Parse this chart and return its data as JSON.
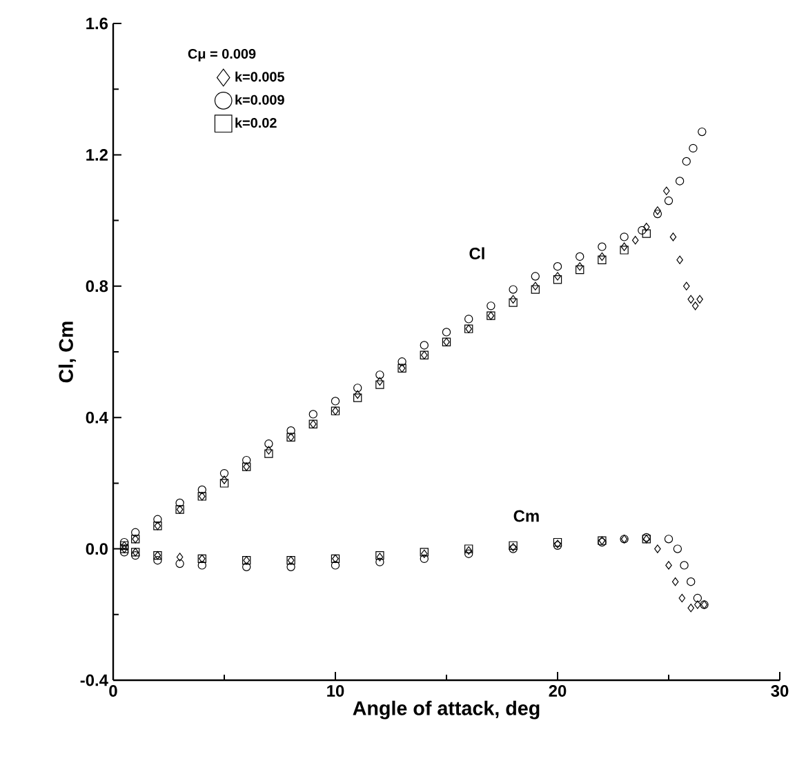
{
  "chart_data": {
    "type": "scatter",
    "xlabel": "Angle of attack, deg",
    "ylabel": "Cl, Cm",
    "legend_title": "Cμ = 0.009",
    "legend": "top left",
    "grid": false,
    "xlim": [
      0,
      30
    ],
    "xticks": [
      0,
      10,
      20,
      30
    ],
    "ylim": [
      -0.4,
      1.6
    ],
    "yticks": [
      -0.4,
      {
        "value": 0,
        "label": "0.0"
      },
      0.4,
      0.8,
      1.2,
      1.6
    ],
    "annotations": [
      "Cl",
      "Cm"
    ],
    "series": [
      {
        "name": "k=0.005",
        "color": "#000000",
        "marker": "diamond",
        "x": [
          0.5,
          1,
          2,
          3,
          4,
          5,
          6,
          7,
          8,
          9,
          10,
          11,
          12,
          13,
          14,
          15,
          16,
          17,
          18,
          19,
          20,
          21,
          22,
          23,
          23.5,
          24,
          24.5,
          24.9,
          25.2,
          25.5,
          25.8,
          26,
          26.2,
          26.4,
          0.5,
          1,
          2,
          3,
          4,
          6,
          8,
          10,
          12,
          14,
          16,
          18,
          20,
          22,
          23,
          24,
          24.5,
          25,
          25.3,
          25.6,
          26,
          26.3,
          26.6
        ],
        "values": [
          0.01,
          0.03,
          0.07,
          0.12,
          0.16,
          0.21,
          0.25,
          0.3,
          0.34,
          0.38,
          0.42,
          0.47,
          0.51,
          0.55,
          0.59,
          0.63,
          0.67,
          0.71,
          0.76,
          0.8,
          0.83,
          0.86,
          0.89,
          0.92,
          0.94,
          0.98,
          1.03,
          1.09,
          0.95,
          0.88,
          0.8,
          0.76,
          0.74,
          0.76,
          0.0,
          -0.01,
          -0.02,
          -0.025,
          -0.03,
          -0.035,
          -0.035,
          -0.03,
          -0.025,
          -0.015,
          -0.005,
          0.005,
          0.015,
          0.025,
          0.03,
          0.03,
          0.0,
          -0.05,
          -0.1,
          -0.15,
          -0.18,
          -0.17,
          -0.17
        ]
      },
      {
        "name": "k=0.009",
        "color": "#000000",
        "marker": "circle",
        "x": [
          0.5,
          1,
          2,
          3,
          4,
          5,
          6,
          7,
          8,
          9,
          10,
          11,
          12,
          13,
          14,
          15,
          16,
          17,
          18,
          19,
          20,
          21,
          22,
          23,
          23.8,
          24.5,
          25,
          25.5,
          25.8,
          26.1,
          26.5,
          0.5,
          1,
          2,
          3,
          4,
          6,
          8,
          10,
          12,
          14,
          16,
          18,
          20,
          22,
          23,
          24,
          25,
          25.4,
          25.7,
          26,
          26.3,
          26.6
        ],
        "values": [
          0.02,
          0.05,
          0.09,
          0.14,
          0.18,
          0.23,
          0.27,
          0.32,
          0.36,
          0.41,
          0.45,
          0.49,
          0.53,
          0.57,
          0.62,
          0.66,
          0.7,
          0.74,
          0.79,
          0.83,
          0.86,
          0.89,
          0.92,
          0.95,
          0.97,
          1.02,
          1.06,
          1.12,
          1.18,
          1.22,
          1.27,
          -0.01,
          -0.02,
          -0.035,
          -0.045,
          -0.05,
          -0.055,
          -0.055,
          -0.05,
          -0.04,
          -0.03,
          -0.015,
          0.0,
          0.01,
          0.02,
          0.03,
          0.035,
          0.03,
          0.0,
          -0.05,
          -0.1,
          -0.15,
          -0.17
        ]
      },
      {
        "name": "k=0.02",
        "color": "#000000",
        "marker": "square",
        "x": [
          0.5,
          1,
          2,
          3,
          4,
          5,
          6,
          7,
          8,
          9,
          10,
          11,
          12,
          13,
          14,
          15,
          16,
          17,
          18,
          19,
          20,
          21,
          22,
          23,
          24,
          0.5,
          1,
          2,
          4,
          6,
          8,
          10,
          12,
          14,
          16,
          18,
          20,
          22,
          24
        ],
        "values": [
          0.01,
          0.03,
          0.07,
          0.12,
          0.16,
          0.2,
          0.25,
          0.29,
          0.34,
          0.38,
          0.42,
          0.46,
          0.5,
          0.55,
          0.59,
          0.63,
          0.67,
          0.71,
          0.75,
          0.79,
          0.82,
          0.85,
          0.88,
          0.91,
          0.96,
          0.0,
          -0.01,
          -0.02,
          -0.03,
          -0.035,
          -0.035,
          -0.03,
          -0.02,
          -0.01,
          0.0,
          0.01,
          0.02,
          0.025,
          0.03
        ]
      }
    ]
  }
}
